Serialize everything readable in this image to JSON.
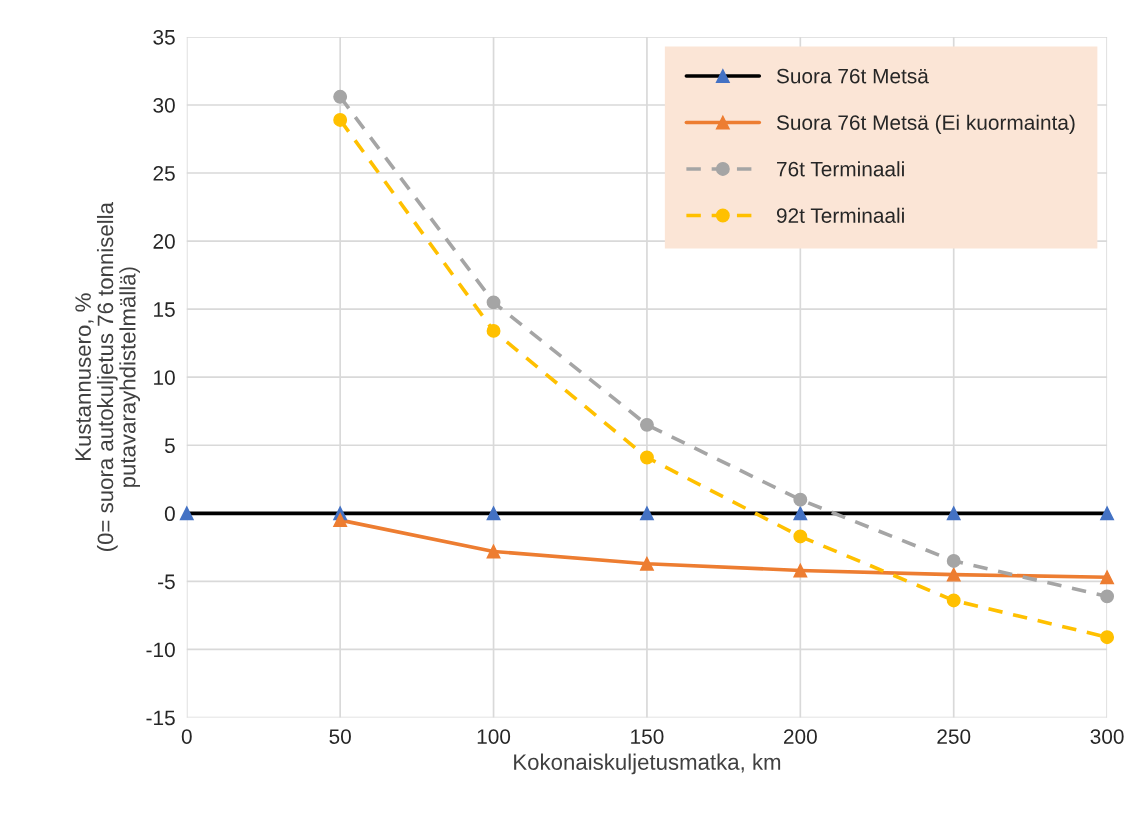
{
  "chart_data": {
    "type": "line",
    "xlabel": "Kokonaiskuljetusmatka, km",
    "ylabel": "Kustannusero, %\n(0= suora autokuljetus 76 tonnisella\nputavarayhdistelmällä)",
    "xlim": [
      0,
      300
    ],
    "xticks": [
      0,
      50,
      100,
      150,
      200,
      250,
      300
    ],
    "ylim": [
      -15,
      35
    ],
    "yticks": [
      -15,
      -10,
      -5,
      0,
      5,
      10,
      15,
      20,
      25,
      30,
      35
    ],
    "grid": true,
    "legend": "top right",
    "series": [
      {
        "name": "Suora 76t Metsä",
        "color": "#000000",
        "colors": [
          "#4472c4",
          "#4472c4",
          "#4472c4",
          "#4472c4",
          "#4472c4",
          "#4472c4",
          "#4472c4"
        ],
        "marker": "triangle",
        "line_style": "solid",
        "x": [
          0,
          50,
          100,
          150,
          200,
          250,
          300
        ],
        "values": [
          0,
          0,
          0,
          0,
          0,
          0,
          0
        ]
      },
      {
        "name": "Suora 76t Metsä (Ei kuormainta)",
        "color": "#ed7d31",
        "marker": "triangle",
        "line_style": "solid",
        "x": [
          50,
          100,
          150,
          200,
          250,
          300
        ],
        "values": [
          -0.5,
          -2.8,
          -3.7,
          -4.2,
          -4.5,
          -4.7
        ]
      },
      {
        "name": "76t Terminaali",
        "color": "#a5a5a5",
        "marker": "circle",
        "line_style": "dashed",
        "x": [
          50,
          100,
          150,
          200,
          250,
          300
        ],
        "values": [
          30.6,
          15.5,
          6.5,
          1.0,
          -3.5,
          -6.1
        ]
      },
      {
        "name": "92t Terminaali",
        "color": "#ffc000",
        "marker": "circle",
        "line_style": "dashed",
        "x": [
          50,
          100,
          150,
          200,
          250,
          300
        ],
        "values": [
          28.9,
          13.4,
          4.1,
          -1.7,
          -6.4,
          -9.1
        ]
      }
    ]
  }
}
